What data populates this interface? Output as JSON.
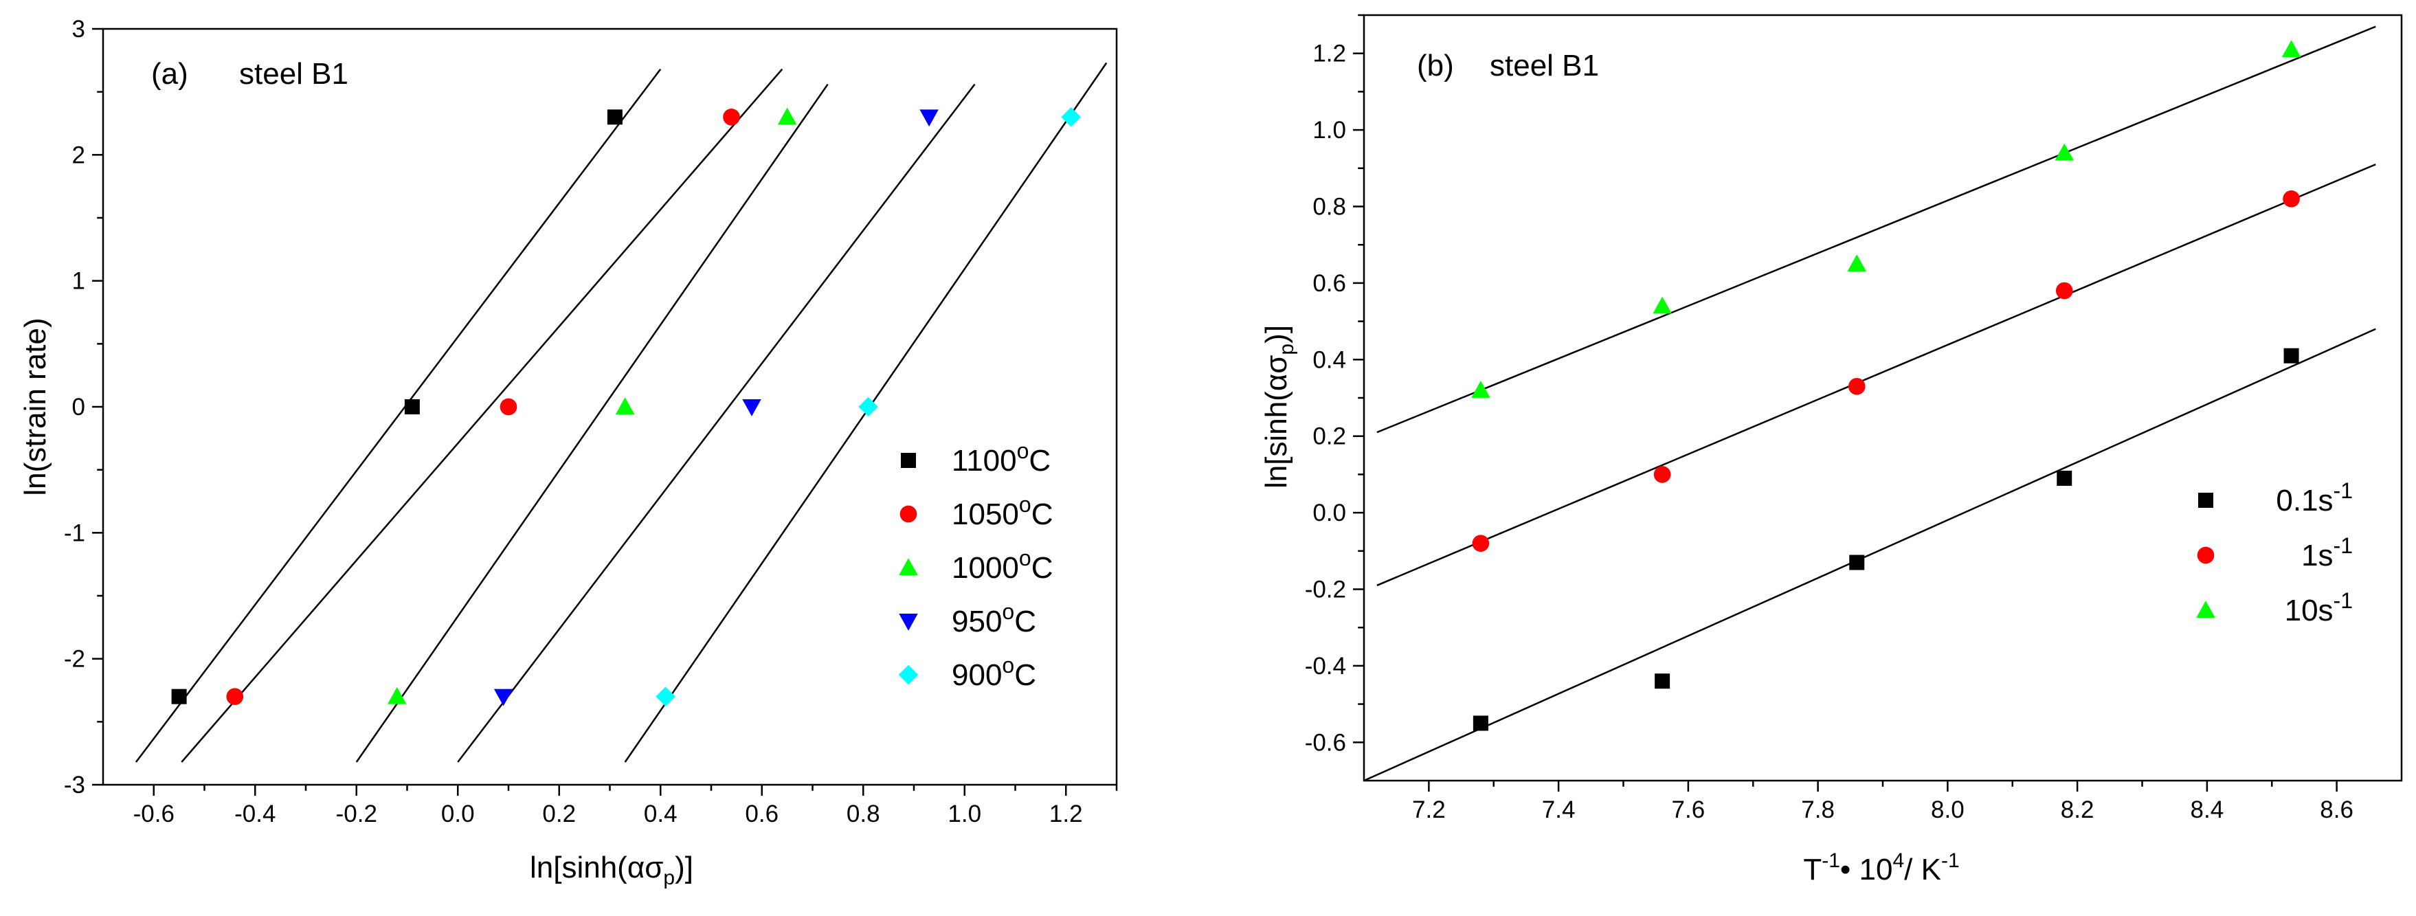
{
  "chart_data": [
    {
      "type": "scatter",
      "panel_label": "(a)",
      "title": "steel B1",
      "xlabel": "ln[sinh(ασp)]",
      "ylabel": "ln(strain rate)",
      "xlim": [
        -0.7,
        1.3
      ],
      "ylim": [
        -3,
        3
      ],
      "xticks": [
        -0.6,
        -0.4,
        -0.2,
        0.0,
        0.2,
        0.4,
        0.6,
        0.8,
        1.0,
        1.2
      ],
      "xtick_labels": [
        "-0.6",
        "-0.4",
        "-0.2",
        "0.0",
        "0.2",
        "0.4",
        "0.6",
        "0.8",
        "1.0",
        "1.2"
      ],
      "yticks": [
        -3,
        -2,
        -1,
        0,
        1,
        2,
        3
      ],
      "ytick_labels": [
        "-3",
        "-2",
        "-1",
        "0",
        "1",
        "2",
        "3"
      ],
      "legend_position": "center-right",
      "series": [
        {
          "name": "1100°C",
          "label_base": "1100",
          "label_unit": "C",
          "marker": "square",
          "color": "#000000",
          "points": [
            [
              -0.55,
              -2.3
            ],
            [
              -0.09,
              0.0
            ],
            [
              0.31,
              2.3
            ]
          ],
          "fit": [
            [
              -0.635,
              -2.82
            ],
            [
              0.4,
              2.68
            ]
          ]
        },
        {
          "name": "1050°C",
          "label_base": "1050",
          "label_unit": "C",
          "marker": "circle",
          "color": "#ff0000",
          "points": [
            [
              -0.44,
              -2.3
            ],
            [
              0.1,
              0.0
            ],
            [
              0.54,
              2.3
            ]
          ],
          "fit": [
            [
              -0.545,
              -2.82
            ],
            [
              0.64,
              2.68
            ]
          ]
        },
        {
          "name": "1000°C",
          "label_base": "1000",
          "label_unit": "C",
          "marker": "triangle-up",
          "color": "#00ff00",
          "points": [
            [
              -0.12,
              -2.3
            ],
            [
              0.33,
              0.0
            ],
            [
              0.65,
              2.3
            ]
          ],
          "fit": [
            [
              -0.2,
              -2.82
            ],
            [
              0.73,
              2.56
            ]
          ]
        },
        {
          "name": "950°C",
          "label_base": "950",
          "label_unit": "C",
          "marker": "triangle-down",
          "color": "#0000ff",
          "points": [
            [
              0.09,
              -2.3
            ],
            [
              0.58,
              0.0
            ],
            [
              0.93,
              2.3
            ]
          ],
          "fit": [
            [
              0.0,
              -2.82
            ],
            [
              1.02,
              2.56
            ]
          ]
        },
        {
          "name": "900°C",
          "label_base": "900",
          "label_unit": "C",
          "marker": "diamond",
          "color": "#00ffff",
          "points": [
            [
              0.41,
              -2.3
            ],
            [
              0.81,
              0.0
            ],
            [
              1.21,
              2.3
            ]
          ],
          "fit": [
            [
              0.33,
              -2.82
            ],
            [
              1.28,
              2.73
            ]
          ]
        }
      ]
    },
    {
      "type": "scatter",
      "panel_label": "(b)",
      "title": "steel B1",
      "xlabel": "T-1• 104/ K-1",
      "xlabel_parts": {
        "t": "T",
        "t_sup": "-1",
        "mid": "• 10",
        "ten_sup": "4",
        "k": "/ K",
        "k_sup": "-1"
      },
      "ylabel": "ln[sinh(ασp)]",
      "xlim": [
        7.1,
        8.7
      ],
      "ylim": [
        -0.7,
        1.3
      ],
      "xticks": [
        7.2,
        7.4,
        7.6,
        7.8,
        8.0,
        8.2,
        8.4,
        8.6
      ],
      "xtick_labels": [
        "7.2",
        "7.4",
        "7.6",
        "7.8",
        "8.0",
        "8.2",
        "8.4",
        "8.6"
      ],
      "yticks": [
        -0.6,
        -0.4,
        -0.2,
        0.0,
        0.2,
        0.4,
        0.6,
        0.8,
        1.0,
        1.2
      ],
      "ytick_labels": [
        "-0.6",
        "-0.4",
        "-0.2",
        "0.0",
        "0.2",
        "0.4",
        "0.6",
        "0.8",
        "1.0",
        "1.2"
      ],
      "legend_position": "center-right",
      "series": [
        {
          "name": "0.1s-1",
          "label_base": "0.1s",
          "label_sup": "-1",
          "marker": "square",
          "color": "#000000",
          "points": [
            [
              7.28,
              -0.55
            ],
            [
              7.56,
              -0.44
            ],
            [
              7.86,
              -0.13
            ],
            [
              8.18,
              0.09
            ],
            [
              8.53,
              0.41
            ]
          ],
          "fit": [
            [
              7.1,
              -0.7
            ],
            [
              8.66,
              0.48
            ]
          ]
        },
        {
          "name": "1s-1",
          "label_base": "1s",
          "label_sup": "-1",
          "marker": "circle",
          "color": "#ff0000",
          "points": [
            [
              7.28,
              -0.08
            ],
            [
              7.56,
              0.1
            ],
            [
              7.86,
              0.33
            ],
            [
              8.18,
              0.58
            ],
            [
              8.53,
              0.82
            ]
          ],
          "fit": [
            [
              7.12,
              -0.19
            ],
            [
              8.66,
              0.91
            ]
          ]
        },
        {
          "name": "10s-1",
          "label_base": "10s",
          "label_sup": "-1",
          "marker": "triangle-up",
          "color": "#00ff00",
          "points": [
            [
              7.28,
              0.32
            ],
            [
              7.56,
              0.54
            ],
            [
              7.86,
              0.65
            ],
            [
              8.18,
              0.94
            ],
            [
              8.53,
              1.21
            ]
          ],
          "fit": [
            [
              7.12,
              0.21
            ],
            [
              8.66,
              1.27
            ]
          ]
        }
      ]
    }
  ]
}
